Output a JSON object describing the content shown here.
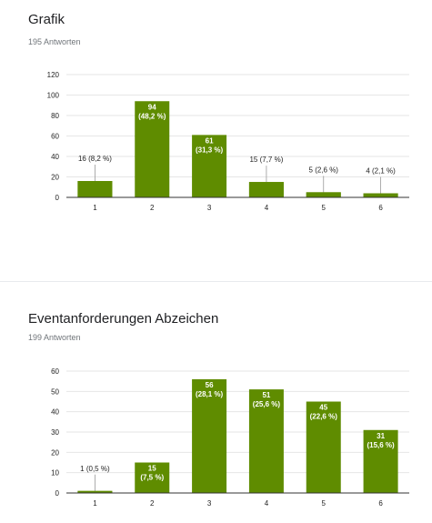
{
  "questions": [
    {
      "title": "Grafik",
      "responses": "195 Antworten"
    },
    {
      "title": "Eventanforderungen Abzeichen",
      "responses": "199 Antworten"
    }
  ],
  "colors": {
    "bar": "#5f8c00",
    "grid": "#e6e6e6",
    "axis": "#333333",
    "label_inside": "#ffffff",
    "label_outside": "#222222",
    "leader": "#999999"
  },
  "chart_data": [
    {
      "type": "bar",
      "title": "Grafik",
      "categories": [
        "1",
        "2",
        "3",
        "4",
        "5",
        "6"
      ],
      "values": [
        16,
        94,
        61,
        15,
        5,
        4
      ],
      "data_labels": [
        "16 (8,2 %)",
        "94\n(48,2 %)",
        "61\n(31,3 %)",
        "15 (7,7 %)",
        "5 (2,6 %)",
        "4 (2,1 %)"
      ],
      "ylim": [
        0,
        120
      ],
      "yticks": [
        0,
        20,
        40,
        60,
        80,
        100,
        120
      ],
      "grid": true
    },
    {
      "type": "bar",
      "title": "Eventanforderungen Abzeichen",
      "categories": [
        "1",
        "2",
        "3",
        "4",
        "5",
        "6"
      ],
      "values": [
        1,
        15,
        56,
        51,
        45,
        31
      ],
      "data_labels": [
        "1 (0,5 %)",
        "15\n(7,5 %)",
        "56\n(28,1 %)",
        "51\n(25,6 %)",
        "45\n(22,6 %)",
        "31\n(15,6 %)"
      ],
      "ylim": [
        0,
        60
      ],
      "yticks": [
        0,
        10,
        20,
        30,
        40,
        50,
        60
      ],
      "grid": true
    }
  ]
}
